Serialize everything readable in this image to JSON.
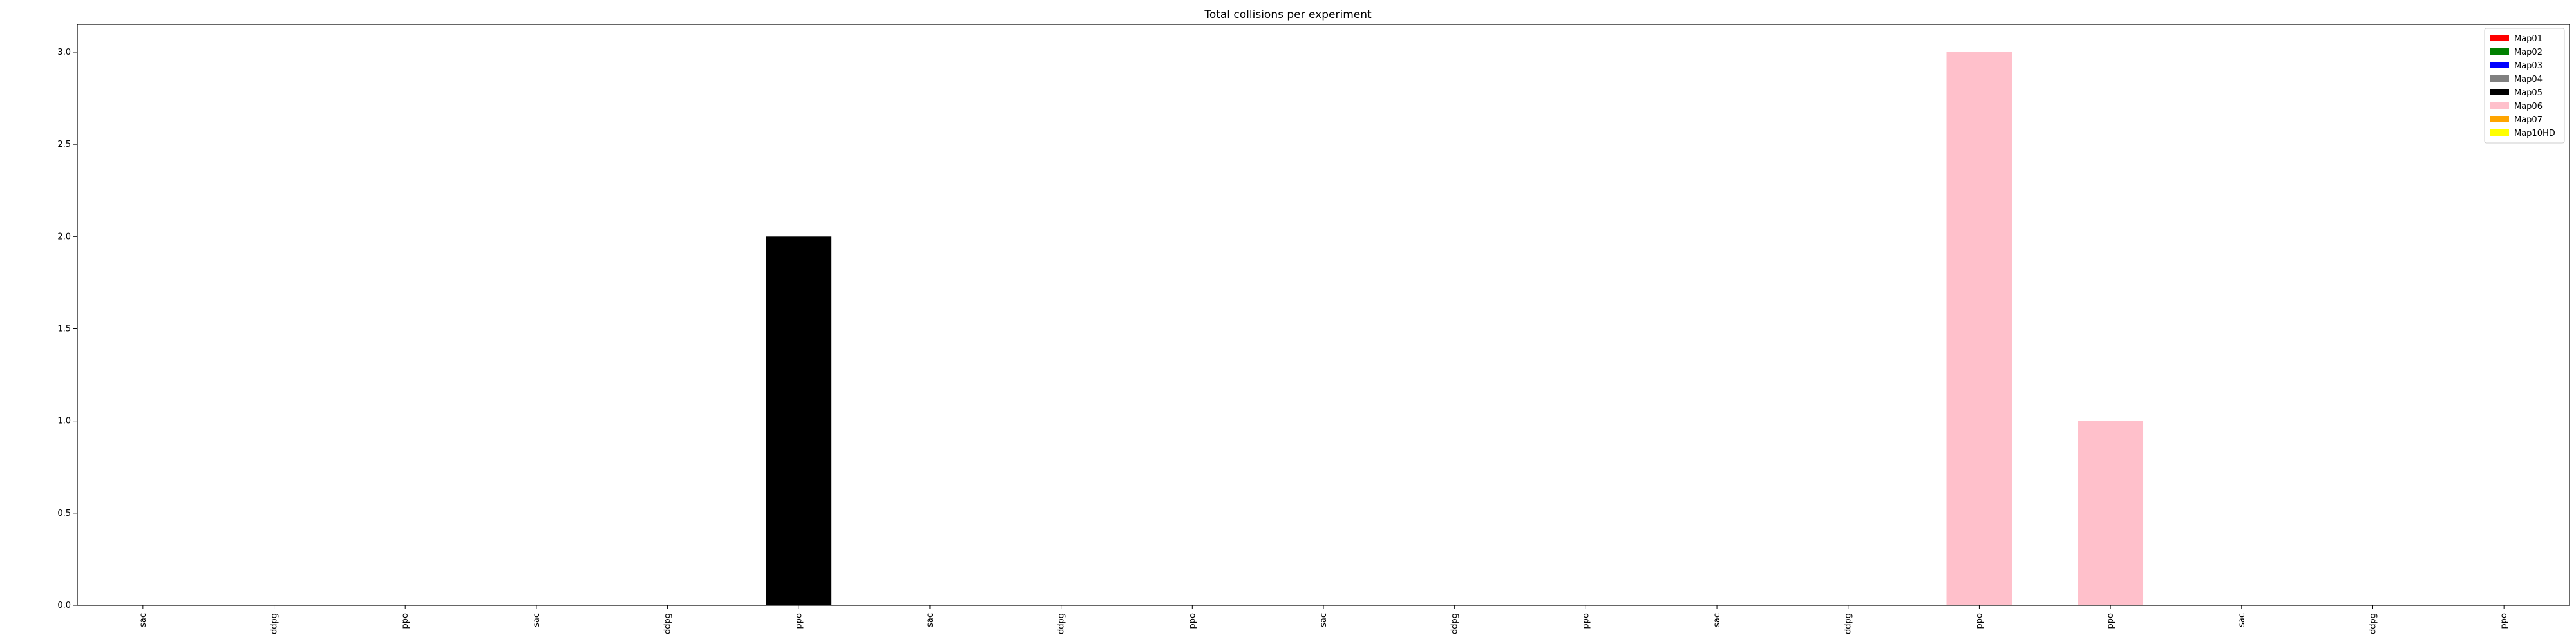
{
  "chart_data": {
    "type": "bar",
    "title": "Total collisions per experiment",
    "xlabel": "",
    "ylabel": "",
    "categories": [
      "sac",
      "ddpg",
      "ppo",
      "sac",
      "ddpg",
      "ppo",
      "sac",
      "ddpg",
      "ppo",
      "sac",
      "ddpg",
      "ppo",
      "sac",
      "ddpg",
      "ppo",
      "ppo",
      "sac",
      "ddpg",
      "ppo"
    ],
    "values": [
      0,
      0,
      0,
      0,
      0,
      2,
      0,
      0,
      0,
      0,
      0,
      0,
      0,
      0,
      3,
      1,
      0,
      0,
      0
    ],
    "bar_colors": [
      "#ff0000",
      "#ff0000",
      "#ff0000",
      "#008000",
      "#008000",
      "#000000",
      "#0000ff",
      "#0000ff",
      "#0000ff",
      "#808080",
      "#808080",
      "#808080",
      "#ff0000",
      "#ff0000",
      "#ffc0cb",
      "#ffc0cb",
      "#ffa500",
      "#ffa500",
      "#ffff00"
    ],
    "ylim": [
      0,
      3.15
    ],
    "yticks": [
      "0.0",
      "0.5",
      "1.0",
      "1.5",
      "2.0",
      "2.5",
      "3.0"
    ],
    "ytick_values": [
      0,
      0.5,
      1.0,
      1.5,
      2.0,
      2.5,
      3.0
    ],
    "grid": false,
    "legend_placement": "top-right",
    "legend": [
      {
        "name": "Map01",
        "color": "#ff0000"
      },
      {
        "name": "Map02",
        "color": "#008000"
      },
      {
        "name": "Map03",
        "color": "#0000ff"
      },
      {
        "name": "Map04",
        "color": "#808080"
      },
      {
        "name": "Map05",
        "color": "#000000"
      },
      {
        "name": "Map06",
        "color": "#ffc0cb"
      },
      {
        "name": "Map07",
        "color": "#ffa500"
      },
      {
        "name": "Map10HD",
        "color": "#ffff00"
      }
    ]
  }
}
